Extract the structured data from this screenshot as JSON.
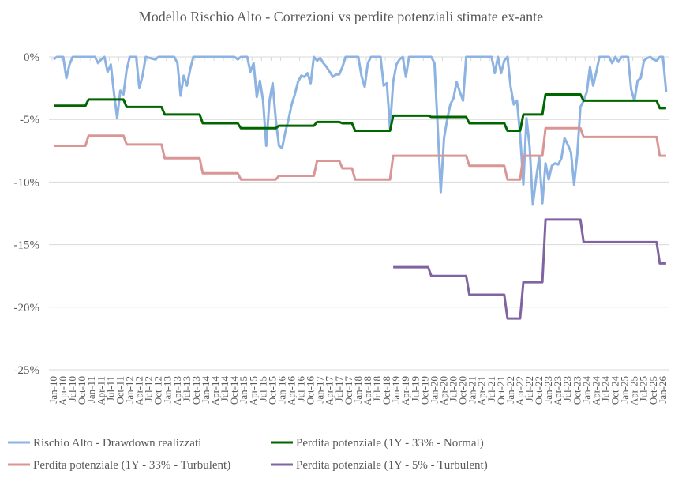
{
  "chart_data": {
    "type": "line",
    "title": "Modello Rischio Alto - Correzioni vs perdite potenziali stimate ex-ante",
    "xlabel": "",
    "ylabel": "",
    "ylim": [
      -25,
      0
    ],
    "yticks": [
      "0%",
      "-5%",
      "-10%",
      "-15%",
      "-20%",
      "-25%"
    ],
    "ytick_values": [
      0,
      -5,
      -10,
      -15,
      -20,
      -25
    ],
    "grid": true,
    "legend_position": "bottom",
    "x_start": "2010-01",
    "x_end": "2026-02",
    "xticks": [
      "Jan-10",
      "Apr-10",
      "Jul-10",
      "Oct-10",
      "Jan-11",
      "Apr-11",
      "Jul-11",
      "Oct-11",
      "Jan-12",
      "Apr-12",
      "Jul-12",
      "Oct-12",
      "Jan-13",
      "Apr-13",
      "Jul-13",
      "Oct-13",
      "Jan-14",
      "Apr-14",
      "Jul-14",
      "Oct-14",
      "Jan-15",
      "Apr-15",
      "Jul-15",
      "Oct-15",
      "Jan-16",
      "Apr-16",
      "Jul-16",
      "Oct-16",
      "Jan-17",
      "Apr-17",
      "Jul-17",
      "Oct-17",
      "Jan-18",
      "Apr-18",
      "Jul-18",
      "Oct-18",
      "Jan-19",
      "Apr-19",
      "Jul-19",
      "Oct-19",
      "Jan-20",
      "Apr-20",
      "Jul-20",
      "Oct-20",
      "Jan-21",
      "Apr-21",
      "Jul-21",
      "Oct-21",
      "Jan-22",
      "Apr-22",
      "Jul-22",
      "Oct-22",
      "Jan-23",
      "Apr-23",
      "Jul-23",
      "Oct-23",
      "Jan-24",
      "Apr-24",
      "Jul-24",
      "Oct-24",
      "Jan-25",
      "Apr-25",
      "Jul-25",
      "Oct-25",
      "Jan-26"
    ],
    "series": [
      {
        "name": "Rischio Alto - Drawdown realizzati",
        "color": "#8db3e2",
        "points": [
          [
            "2010-01",
            -0.2
          ],
          [
            "2010-02",
            0
          ],
          [
            "2010-04",
            0
          ],
          [
            "2010-05",
            -1.7
          ],
          [
            "2010-06",
            -0.6
          ],
          [
            "2010-07",
            0
          ],
          [
            "2010-12",
            0
          ],
          [
            "2011-02",
            0
          ],
          [
            "2011-03",
            -0.5
          ],
          [
            "2011-04",
            -0.2
          ],
          [
            "2011-05",
            0
          ],
          [
            "2011-06",
            -1.2
          ],
          [
            "2011-07",
            -0.6
          ],
          [
            "2011-08",
            -2.9
          ],
          [
            "2011-09",
            -4.9
          ],
          [
            "2011-10",
            -2.7
          ],
          [
            "2011-11",
            -3.0
          ],
          [
            "2011-12",
            -1.0
          ],
          [
            "2012-01",
            0
          ],
          [
            "2012-03",
            0
          ],
          [
            "2012-04",
            -2.5
          ],
          [
            "2012-05",
            -1.5
          ],
          [
            "2012-06",
            0
          ],
          [
            "2012-09",
            -0.2
          ],
          [
            "2012-10",
            0
          ],
          [
            "2013-03",
            0
          ],
          [
            "2013-04",
            -0.5
          ],
          [
            "2013-05",
            -3.1
          ],
          [
            "2013-06",
            -1.5
          ],
          [
            "2013-07",
            -2.3
          ],
          [
            "2013-08",
            -1.0
          ],
          [
            "2013-09",
            0
          ],
          [
            "2014-10",
            0
          ],
          [
            "2014-11",
            -0.2
          ],
          [
            "2014-12",
            0
          ],
          [
            "2015-02",
            0
          ],
          [
            "2015-03",
            -1.2
          ],
          [
            "2015-04",
            -0.5
          ],
          [
            "2015-05",
            -3.2
          ],
          [
            "2015-06",
            -1.9
          ],
          [
            "2015-07",
            -3.5
          ],
          [
            "2015-08",
            -7.1
          ],
          [
            "2015-09",
            -3.5
          ],
          [
            "2015-10",
            -2.1
          ],
          [
            "2015-11",
            -5.0
          ],
          [
            "2015-12",
            -7.1
          ],
          [
            "2016-01",
            -7.3
          ],
          [
            "2016-02",
            -6.0
          ],
          [
            "2016-03",
            -5.0
          ],
          [
            "2016-04",
            -3.8
          ],
          [
            "2016-05",
            -3.0
          ],
          [
            "2016-06",
            -2.0
          ],
          [
            "2016-07",
            -1.5
          ],
          [
            "2016-08",
            -1.6
          ],
          [
            "2016-09",
            -1.3
          ],
          [
            "2016-10",
            -2.1
          ],
          [
            "2016-11",
            0
          ],
          [
            "2016-12",
            -0.3
          ],
          [
            "2017-01",
            -0.1
          ],
          [
            "2017-02",
            -0.5
          ],
          [
            "2017-03",
            -0.8
          ],
          [
            "2017-04",
            -1.2
          ],
          [
            "2017-05",
            -1.6
          ],
          [
            "2017-06",
            -1.4
          ],
          [
            "2017-07",
            -1.4
          ],
          [
            "2017-08",
            -0.8
          ],
          [
            "2017-09",
            0
          ],
          [
            "2018-01",
            0
          ],
          [
            "2018-02",
            -1.5
          ],
          [
            "2018-03",
            -2.4
          ],
          [
            "2018-04",
            -0.5
          ],
          [
            "2018-05",
            0
          ],
          [
            "2018-08",
            0
          ],
          [
            "2018-09",
            -2.3
          ],
          [
            "2018-10",
            -2.1
          ],
          [
            "2018-11",
            -5.7
          ],
          [
            "2018-12",
            -2.0
          ],
          [
            "2019-01",
            -0.6
          ],
          [
            "2019-02",
            -0.2
          ],
          [
            "2019-03",
            0
          ],
          [
            "2019-04",
            -1.6
          ],
          [
            "2019-05",
            0
          ],
          [
            "2019-12",
            0
          ],
          [
            "2020-01",
            -0.5
          ],
          [
            "2020-02",
            -5.5
          ],
          [
            "2020-03",
            -10.8
          ],
          [
            "2020-04",
            -6.5
          ],
          [
            "2020-05",
            -5.0
          ],
          [
            "2020-06",
            -3.8
          ],
          [
            "2020-07",
            -3.3
          ],
          [
            "2020-08",
            -2.0
          ],
          [
            "2020-09",
            -2.8
          ],
          [
            "2020-10",
            -3.5
          ],
          [
            "2020-11",
            0
          ],
          [
            "2021-07",
            0
          ],
          [
            "2021-08",
            -1.3
          ],
          [
            "2021-09",
            0
          ],
          [
            "2021-10",
            -1.3
          ],
          [
            "2021-11",
            -0.3
          ],
          [
            "2021-12",
            0
          ],
          [
            "2022-01",
            -2.4
          ],
          [
            "2022-02",
            -3.8
          ],
          [
            "2022-03",
            -3.5
          ],
          [
            "2022-04",
            -6.2
          ],
          [
            "2022-05",
            -10.2
          ],
          [
            "2022-06",
            -4.9
          ],
          [
            "2022-07",
            -7.2
          ],
          [
            "2022-08",
            -11.8
          ],
          [
            "2022-09",
            -9.8
          ],
          [
            "2022-10",
            -8.0
          ],
          [
            "2022-11",
            -11.7
          ],
          [
            "2022-12",
            -8.5
          ],
          [
            "2023-01",
            -9.8
          ],
          [
            "2023-02",
            -8.7
          ],
          [
            "2023-03",
            -8.5
          ],
          [
            "2023-04",
            -8.6
          ],
          [
            "2023-05",
            -8.1
          ],
          [
            "2023-06",
            -6.5
          ],
          [
            "2023-07",
            -7.0
          ],
          [
            "2023-08",
            -7.6
          ],
          [
            "2023-09",
            -10.2
          ],
          [
            "2023-10",
            -7.8
          ],
          [
            "2023-11",
            -4.0
          ],
          [
            "2023-12",
            -3.5
          ],
          [
            "2024-01",
            -2.8
          ],
          [
            "2024-02",
            -0.8
          ],
          [
            "2024-03",
            -2.3
          ],
          [
            "2024-04",
            -1.2
          ],
          [
            "2024-05",
            0
          ],
          [
            "2024-08",
            0
          ],
          [
            "2024-09",
            -0.5
          ],
          [
            "2024-10",
            0
          ],
          [
            "2024-11",
            -0.4
          ],
          [
            "2024-12",
            0
          ],
          [
            "2025-02",
            0
          ],
          [
            "2025-03",
            -2.6
          ],
          [
            "2025-04",
            -3.5
          ],
          [
            "2025-05",
            -1.9
          ],
          [
            "2025-06",
            -1.7
          ],
          [
            "2025-07",
            -0.3
          ],
          [
            "2025-08",
            -0.1
          ],
          [
            "2025-09",
            0
          ],
          [
            "2025-10",
            -0.2
          ],
          [
            "2025-11",
            -0.3
          ],
          [
            "2025-12",
            0
          ],
          [
            "2026-01",
            0
          ],
          [
            "2026-02",
            -2.8
          ]
        ]
      },
      {
        "name": "Perdita potenziale (1Y - 33% - Normal)",
        "color": "#006600",
        "levels": [
          [
            "2010-01",
            -3.9
          ],
          [
            "2010-12",
            -3.4
          ],
          [
            "2011-12",
            -4.0
          ],
          [
            "2012-12",
            -4.6
          ],
          [
            "2013-12",
            -5.3
          ],
          [
            "2014-12",
            -5.7
          ],
          [
            "2015-12",
            -5.5
          ],
          [
            "2016-12",
            -5.2
          ],
          [
            "2017-08",
            -5.3
          ],
          [
            "2017-12",
            -5.9
          ],
          [
            "2018-12",
            -4.7
          ],
          [
            "2019-12",
            -4.8
          ],
          [
            "2020-12",
            -5.3
          ],
          [
            "2021-12",
            -5.9
          ],
          [
            "2022-05",
            -4.6
          ],
          [
            "2022-12",
            -3.0
          ],
          [
            "2023-12",
            -3.5
          ],
          [
            "2025-12",
            -4.1
          ]
        ]
      },
      {
        "name": "Perdita potenziale (1Y - 33% - Turbulent)",
        "color": "#d99694",
        "levels": [
          [
            "2010-01",
            -7.1
          ],
          [
            "2010-12",
            -6.3
          ],
          [
            "2011-12",
            -7.0
          ],
          [
            "2012-12",
            -8.1
          ],
          [
            "2013-12",
            -9.3
          ],
          [
            "2014-12",
            -9.8
          ],
          [
            "2015-12",
            -9.5
          ],
          [
            "2016-12",
            -8.3
          ],
          [
            "2017-08",
            -8.9
          ],
          [
            "2017-12",
            -9.8
          ],
          [
            "2018-12",
            -7.9
          ],
          [
            "2020-12",
            -8.7
          ],
          [
            "2021-12",
            -9.8
          ],
          [
            "2022-05",
            -7.9
          ],
          [
            "2022-12",
            -5.7
          ],
          [
            "2023-12",
            -6.4
          ],
          [
            "2025-12",
            -7.9
          ]
        ]
      },
      {
        "name": "Perdita potenziale (1Y - 5% - Turbulent)",
        "color": "#8064a2",
        "levels": [
          [
            "2018-12",
            -16.8
          ],
          [
            "2019-12",
            -17.5
          ],
          [
            "2020-12",
            -19.0
          ],
          [
            "2021-12",
            -20.9
          ],
          [
            "2022-05",
            -18.0
          ],
          [
            "2022-12",
            -13.0
          ],
          [
            "2023-12",
            -14.8
          ],
          [
            "2025-12",
            -16.5
          ]
        ]
      }
    ]
  }
}
